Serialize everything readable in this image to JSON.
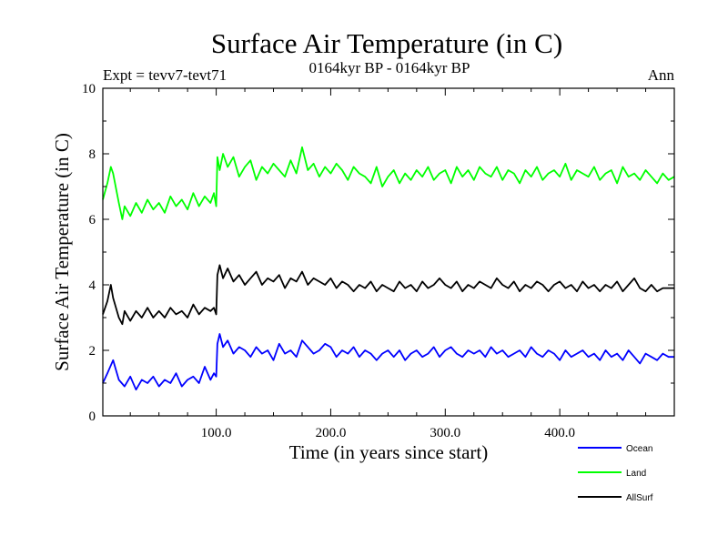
{
  "chart_data": {
    "type": "line",
    "title": "Surface Air Temperature (in C)",
    "subtitle": "0164kyr BP - 0164kyr BP",
    "experiment_label": "Expt = tevv7-tevt71",
    "period_label": "Ann",
    "xlabel": "Time (in years since start)",
    "ylabel": "Surface Air Temperature (in C)",
    "xlim": [
      1,
      500
    ],
    "ylim": [
      0,
      10
    ],
    "x_ticks": [
      100,
      200,
      300,
      400
    ],
    "x_tick_labels": [
      "100.0",
      "200.0",
      "300.0",
      "400.0"
    ],
    "y_ticks": [
      0,
      2,
      4,
      6,
      8,
      10
    ],
    "y_tick_labels": [
      "0",
      "2",
      "4",
      "6",
      "8",
      "10"
    ],
    "grid": false,
    "legend_position": "bottom-right",
    "series": [
      {
        "name": "Ocean",
        "color": "#0000ff",
        "x": [
          1,
          5,
          10,
          15,
          20,
          25,
          30,
          35,
          40,
          45,
          50,
          55,
          60,
          65,
          70,
          75,
          80,
          85,
          90,
          95,
          98,
          100,
          101,
          103,
          106,
          110,
          115,
          120,
          125,
          130,
          135,
          140,
          145,
          150,
          155,
          160,
          165,
          170,
          175,
          180,
          185,
          190,
          195,
          200,
          205,
          210,
          215,
          220,
          225,
          230,
          235,
          240,
          245,
          250,
          255,
          260,
          265,
          270,
          275,
          280,
          285,
          290,
          295,
          300,
          305,
          310,
          315,
          320,
          325,
          330,
          335,
          340,
          345,
          350,
          355,
          360,
          365,
          370,
          375,
          380,
          385,
          390,
          395,
          400,
          405,
          410,
          415,
          420,
          425,
          430,
          435,
          440,
          445,
          450,
          455,
          460,
          465,
          470,
          475,
          480,
          485,
          490,
          495,
          500
        ],
        "y": [
          1.0,
          1.3,
          1.7,
          1.1,
          0.9,
          1.2,
          0.8,
          1.1,
          1.0,
          1.2,
          0.9,
          1.1,
          1.0,
          1.3,
          0.9,
          1.1,
          1.2,
          1.0,
          1.5,
          1.1,
          1.3,
          1.2,
          2.2,
          2.5,
          2.1,
          2.3,
          1.9,
          2.1,
          2.0,
          1.8,
          2.1,
          1.9,
          2.0,
          1.7,
          2.2,
          1.9,
          2.0,
          1.8,
          2.3,
          2.1,
          1.9,
          2.0,
          2.2,
          2.1,
          1.8,
          2.0,
          1.9,
          2.1,
          1.8,
          2.0,
          1.9,
          1.7,
          1.9,
          2.0,
          1.8,
          2.0,
          1.7,
          1.9,
          2.0,
          1.8,
          1.9,
          2.1,
          1.8,
          2.0,
          2.1,
          1.9,
          1.8,
          2.0,
          1.9,
          2.0,
          1.8,
          2.1,
          1.9,
          2.0,
          1.8,
          1.9,
          2.0,
          1.8,
          2.1,
          1.9,
          1.8,
          2.0,
          1.9,
          1.7,
          2.0,
          1.8,
          1.9,
          2.0,
          1.8,
          1.9,
          1.7,
          2.0,
          1.8,
          1.9,
          1.7,
          2.0,
          1.8,
          1.6,
          1.9,
          1.8,
          1.7,
          1.9,
          1.8,
          1.8
        ]
      },
      {
        "name": "Land",
        "color": "#00ff00",
        "x": [
          1,
          5,
          8,
          10,
          15,
          18,
          20,
          25,
          30,
          35,
          40,
          45,
          50,
          55,
          60,
          65,
          70,
          75,
          80,
          85,
          90,
          95,
          98,
          100,
          101,
          103,
          106,
          110,
          115,
          120,
          125,
          130,
          135,
          140,
          145,
          150,
          155,
          160,
          165,
          170,
          175,
          180,
          185,
          190,
          195,
          200,
          205,
          210,
          215,
          220,
          225,
          230,
          235,
          240,
          245,
          250,
          255,
          260,
          265,
          270,
          275,
          280,
          285,
          290,
          295,
          300,
          305,
          310,
          315,
          320,
          325,
          330,
          335,
          340,
          345,
          350,
          355,
          360,
          365,
          370,
          375,
          380,
          385,
          390,
          395,
          400,
          405,
          410,
          415,
          420,
          425,
          430,
          435,
          440,
          445,
          450,
          455,
          460,
          465,
          470,
          475,
          480,
          485,
          490,
          495,
          500
        ],
        "y": [
          6.6,
          7.1,
          7.6,
          7.4,
          6.5,
          6.0,
          6.4,
          6.1,
          6.5,
          6.2,
          6.6,
          6.3,
          6.5,
          6.2,
          6.7,
          6.4,
          6.6,
          6.3,
          6.8,
          6.4,
          6.7,
          6.5,
          6.8,
          6.4,
          7.9,
          7.5,
          8.0,
          7.6,
          7.9,
          7.3,
          7.6,
          7.8,
          7.2,
          7.6,
          7.4,
          7.7,
          7.5,
          7.3,
          7.8,
          7.4,
          8.2,
          7.5,
          7.7,
          7.3,
          7.6,
          7.4,
          7.7,
          7.5,
          7.2,
          7.6,
          7.4,
          7.3,
          7.1,
          7.6,
          7.0,
          7.3,
          7.5,
          7.1,
          7.4,
          7.2,
          7.5,
          7.3,
          7.6,
          7.2,
          7.4,
          7.5,
          7.1,
          7.6,
          7.3,
          7.5,
          7.2,
          7.6,
          7.4,
          7.3,
          7.6,
          7.2,
          7.5,
          7.4,
          7.1,
          7.5,
          7.3,
          7.6,
          7.2,
          7.4,
          7.5,
          7.3,
          7.7,
          7.2,
          7.5,
          7.4,
          7.3,
          7.6,
          7.2,
          7.4,
          7.5,
          7.1,
          7.6,
          7.3,
          7.4,
          7.2,
          7.5,
          7.3,
          7.1,
          7.4,
          7.2,
          7.3
        ]
      },
      {
        "name": "AllSurf",
        "color": "#000000",
        "x": [
          1,
          5,
          8,
          10,
          15,
          18,
          20,
          25,
          30,
          35,
          40,
          45,
          50,
          55,
          60,
          65,
          70,
          75,
          80,
          85,
          90,
          95,
          98,
          100,
          101,
          103,
          106,
          110,
          115,
          120,
          125,
          130,
          135,
          140,
          145,
          150,
          155,
          160,
          165,
          170,
          175,
          180,
          185,
          190,
          195,
          200,
          205,
          210,
          215,
          220,
          225,
          230,
          235,
          240,
          245,
          250,
          255,
          260,
          265,
          270,
          275,
          280,
          285,
          290,
          295,
          300,
          305,
          310,
          315,
          320,
          325,
          330,
          335,
          340,
          345,
          350,
          355,
          360,
          365,
          370,
          375,
          380,
          385,
          390,
          395,
          400,
          405,
          410,
          415,
          420,
          425,
          430,
          435,
          440,
          445,
          450,
          455,
          460,
          465,
          470,
          475,
          480,
          485,
          490,
          495,
          500
        ],
        "y": [
          3.1,
          3.5,
          4.0,
          3.6,
          3.0,
          2.8,
          3.2,
          2.9,
          3.2,
          3.0,
          3.3,
          3.0,
          3.2,
          3.0,
          3.3,
          3.1,
          3.2,
          3.0,
          3.4,
          3.1,
          3.3,
          3.2,
          3.3,
          3.1,
          4.3,
          4.6,
          4.2,
          4.5,
          4.1,
          4.3,
          4.0,
          4.2,
          4.4,
          4.0,
          4.2,
          4.1,
          4.3,
          3.9,
          4.2,
          4.1,
          4.4,
          4.0,
          4.2,
          4.1,
          4.0,
          4.2,
          3.9,
          4.1,
          4.0,
          3.8,
          4.0,
          3.9,
          4.1,
          3.8,
          4.0,
          3.9,
          3.8,
          4.1,
          3.9,
          4.0,
          3.8,
          4.1,
          3.9,
          4.0,
          4.2,
          4.0,
          3.9,
          4.1,
          3.8,
          4.0,
          3.9,
          4.1,
          4.0,
          3.9,
          4.2,
          4.0,
          3.9,
          4.1,
          3.8,
          4.0,
          3.9,
          4.1,
          4.0,
          3.8,
          4.0,
          4.1,
          3.9,
          4.0,
          3.8,
          4.1,
          3.9,
          4.0,
          3.8,
          4.0,
          3.9,
          4.1,
          3.8,
          4.0,
          4.2,
          3.9,
          3.8,
          4.0,
          3.8,
          3.9,
          3.9,
          3.9
        ]
      }
    ]
  }
}
